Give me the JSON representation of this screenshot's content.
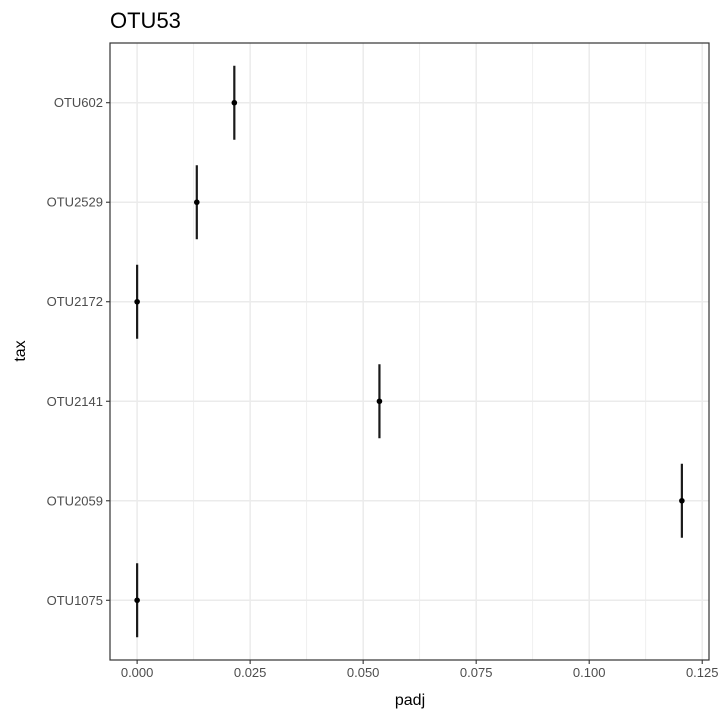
{
  "chart_data": {
    "type": "scatter",
    "title": "OTU53",
    "xlabel": "padj",
    "ylabel": "tax",
    "xlim": [
      -0.006,
      0.1265
    ],
    "x_ticks": [
      "0.000",
      "0.025",
      "0.050",
      "0.075",
      "0.100",
      "0.125"
    ],
    "x_tick_values": [
      0,
      0.025,
      0.05,
      0.075,
      0.1,
      0.125
    ],
    "categories": [
      "OTU1075",
      "OTU2059",
      "OTU2141",
      "OTU2172",
      "OTU2529",
      "OTU602"
    ],
    "series": [
      {
        "points": [
          {
            "tax": "OTU1075",
            "x": 0.0
          },
          {
            "tax": "OTU2059",
            "x": 0.1205
          },
          {
            "tax": "OTU2141",
            "x": 0.0536
          },
          {
            "tax": "OTU2172",
            "x": 0.0
          },
          {
            "tax": "OTU2529",
            "x": 0.0132
          },
          {
            "tax": "OTU602",
            "x": 0.0215
          }
        ]
      }
    ],
    "grid": true,
    "legend": "none",
    "colors": {
      "point": "#000000",
      "errorbar": "#1a1a1a",
      "grid": "#ebebeb",
      "panel_border": "#333333"
    }
  }
}
